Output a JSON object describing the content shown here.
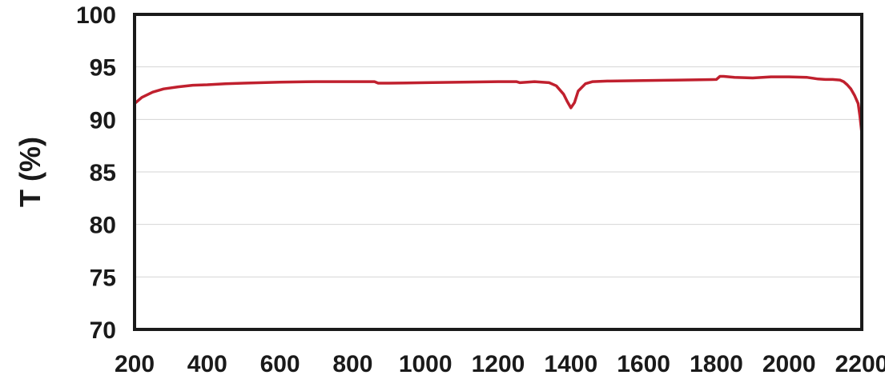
{
  "chart_data": {
    "type": "line",
    "title": "",
    "xlabel": "",
    "ylabel": "T (%)",
    "xlim": [
      200,
      2200
    ],
    "ylim": [
      70,
      100
    ],
    "xticks": [
      "200",
      "400",
      "600",
      "800",
      "1000",
      "1200",
      "1400",
      "1600",
      "1800",
      "2000",
      "2200"
    ],
    "yticks": [
      "70",
      "75",
      "80",
      "85",
      "90",
      "95",
      "100"
    ],
    "grid": true,
    "series": [
      {
        "color": "#c0202e",
        "x": [
          200,
          220,
          250,
          280,
          320,
          360,
          400,
          450,
          500,
          600,
          700,
          800,
          860,
          870,
          900,
          1000,
          1100,
          1200,
          1250,
          1260,
          1300,
          1340,
          1360,
          1380,
          1390,
          1400,
          1410,
          1420,
          1440,
          1460,
          1500,
          1600,
          1700,
          1800,
          1810,
          1820,
          1850,
          1900,
          1950,
          2000,
          2050,
          2080,
          2100,
          2120,
          2140,
          2150,
          2160,
          2170,
          2180,
          2190,
          2195,
          2200
        ],
        "y": [
          91.5,
          92.1,
          92.6,
          92.9,
          93.1,
          93.25,
          93.3,
          93.4,
          93.45,
          93.55,
          93.6,
          93.6,
          93.6,
          93.45,
          93.45,
          93.5,
          93.55,
          93.6,
          93.6,
          93.5,
          93.6,
          93.5,
          93.2,
          92.4,
          91.7,
          91.1,
          91.6,
          92.7,
          93.4,
          93.6,
          93.65,
          93.7,
          93.75,
          93.8,
          94.1,
          94.1,
          94.0,
          93.95,
          94.05,
          94.05,
          94.0,
          93.85,
          93.8,
          93.8,
          93.75,
          93.6,
          93.3,
          92.9,
          92.3,
          91.5,
          90.3,
          88.7
        ]
      }
    ]
  }
}
